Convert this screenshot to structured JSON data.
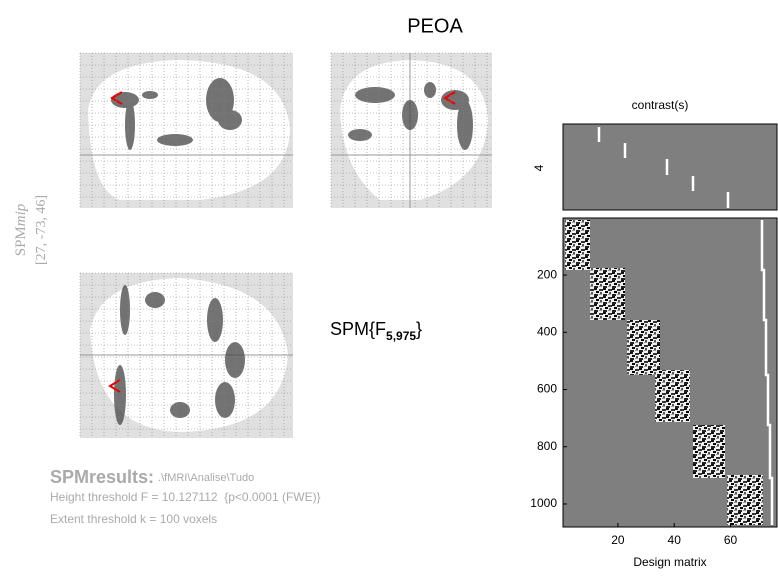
{
  "title": "PEOA",
  "mip": {
    "label": "SPM",
    "label_italic": "mip",
    "coordinates": "[27, -73, 46]"
  },
  "statistic": {
    "prefix": "SPM{F",
    "subscript": "5,975",
    "suffix": "}"
  },
  "results": {
    "title": "SPMresults:",
    "path": ".\\fMRI\\Analise\\Tudo",
    "height_threshold": "Height threshold F = 10.127112  {p<0.0001 (FWE)}",
    "extent_threshold": "Extent threshold k = 100 voxels"
  },
  "contrast": {
    "title": "contrast(s)",
    "label": "4"
  },
  "design_matrix": {
    "xlabel": "Design matrix",
    "xlim": [
      0.5,
      76.5
    ],
    "ylim": [
      0.5,
      1080.5
    ],
    "xticks": [
      20,
      40,
      60
    ],
    "yticks": [
      200,
      400,
      600,
      800,
      1000
    ]
  }
}
